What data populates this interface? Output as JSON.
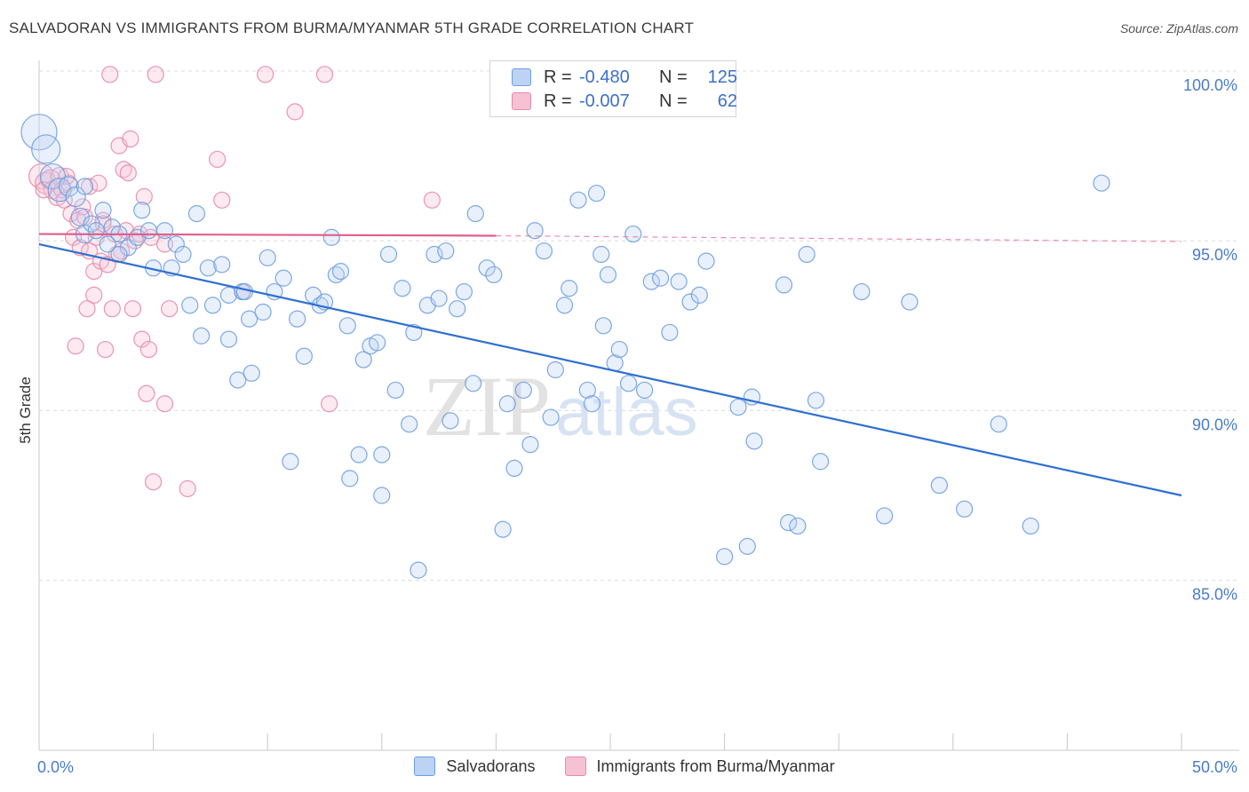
{
  "title": "SALVADORAN VS IMMIGRANTS FROM BURMA/MYANMAR 5TH GRADE CORRELATION CHART",
  "source": "Source: ZipAtlas.com",
  "watermark": {
    "part1": "ZIP",
    "part2": "atlas"
  },
  "colors": {
    "blue": "#6f9fe0",
    "blue_fill": "#bcd3f3",
    "blue_line": "#2e6fd2",
    "pink": "#e88aa8",
    "pink_fill": "#f6c2d3",
    "pink_line": "#e0608a",
    "tick_label": "#4a7cc9",
    "grid": "#dcdcdc"
  },
  "stats": {
    "rows": [
      {
        "r_label": "R =",
        "r_value": "-0.480",
        "n_label": "N =",
        "n_value": "125"
      },
      {
        "r_label": "R =",
        "r_value": "-0.007",
        "n_label": "N =",
        "n_value": "62"
      }
    ]
  },
  "chart_data": {
    "type": "scatter",
    "ylabel": "5th Grade",
    "xlim": [
      0,
      50
    ],
    "ylim": [
      80.0,
      100.8
    ],
    "x_tick_labels": [
      {
        "value": 0,
        "label": "0.0%"
      },
      {
        "value": 50,
        "label": "50.0%"
      }
    ],
    "y_tick_labels": [
      {
        "value": 100,
        "label": "100.0%"
      },
      {
        "value": 95,
        "label": "95.0%"
      },
      {
        "value": 90,
        "label": "90.0%"
      },
      {
        "value": 85,
        "label": "85.0%"
      }
    ],
    "grid": "horizontal dashed",
    "legend_position": "bottom",
    "series": [
      {
        "name": "Salvadorans",
        "trend": {
          "x0": 0,
          "y0": 94.9,
          "x1": 50,
          "y1": 87.5
        },
        "points": [
          [
            0.0,
            98.2,
            20
          ],
          [
            0.3,
            97.7,
            16
          ],
          [
            0.6,
            96.9,
            14
          ],
          [
            0.9,
            96.5,
            13
          ],
          [
            1.3,
            96.6,
            11
          ],
          [
            1.6,
            96.3,
            11
          ],
          [
            1.8,
            95.7,
            10
          ],
          [
            2.0,
            95.2,
            10
          ],
          [
            2.3,
            95.5,
            9
          ],
          [
            2.8,
            95.9,
            9
          ],
          [
            3.2,
            95.4,
            9
          ],
          [
            2.5,
            95.3,
            9
          ],
          [
            3.5,
            95.2,
            9
          ],
          [
            3.9,
            94.8,
            9
          ],
          [
            3.0,
            94.9,
            9
          ],
          [
            4.3,
            95.1,
            9
          ],
          [
            4.5,
            95.9,
            9
          ],
          [
            4.8,
            95.3,
            9
          ],
          [
            5.0,
            94.2,
            9
          ],
          [
            5.5,
            95.3,
            9
          ],
          [
            5.8,
            94.2,
            9
          ],
          [
            6.0,
            94.9,
            9
          ],
          [
            6.3,
            94.6,
            9
          ],
          [
            6.6,
            93.1,
            9
          ],
          [
            6.9,
            95.8,
            9
          ],
          [
            7.1,
            92.2,
            9
          ],
          [
            7.4,
            94.2,
            9
          ],
          [
            7.6,
            93.1,
            9
          ],
          [
            8.0,
            94.3,
            9
          ],
          [
            8.3,
            93.4,
            9
          ],
          [
            8.7,
            90.9,
            9
          ],
          [
            8.9,
            93.5,
            9
          ],
          [
            9.2,
            92.7,
            9
          ],
          [
            9.3,
            91.1,
            9
          ],
          [
            9.8,
            92.9,
            9
          ],
          [
            10.0,
            94.5,
            9
          ],
          [
            10.3,
            93.5,
            9
          ],
          [
            10.7,
            93.9,
            9
          ],
          [
            11.0,
            88.5,
            9
          ],
          [
            11.3,
            92.7,
            9
          ],
          [
            11.6,
            91.6,
            9
          ],
          [
            12.0,
            93.4,
            9
          ],
          [
            12.3,
            93.1,
            9
          ],
          [
            12.8,
            95.1,
            9
          ],
          [
            13.0,
            94.0,
            9
          ],
          [
            13.2,
            94.1,
            9
          ],
          [
            13.5,
            92.5,
            9
          ],
          [
            13.6,
            88.0,
            9
          ],
          [
            14.0,
            88.7,
            9
          ],
          [
            14.2,
            91.5,
            9
          ],
          [
            14.5,
            91.9,
            9
          ],
          [
            14.8,
            92.0,
            9
          ],
          [
            15.0,
            87.5,
            9
          ],
          [
            15.3,
            94.6,
            9
          ],
          [
            15.6,
            90.6,
            9
          ],
          [
            15.9,
            93.6,
            9
          ],
          [
            16.2,
            89.6,
            9
          ],
          [
            16.4,
            92.3,
            9
          ],
          [
            16.6,
            85.3,
            9
          ],
          [
            17.0,
            93.1,
            9
          ],
          [
            17.3,
            94.6,
            9
          ],
          [
            17.5,
            93.3,
            9
          ],
          [
            17.8,
            94.7,
            9
          ],
          [
            18.0,
            89.7,
            9
          ],
          [
            18.3,
            93.0,
            9
          ],
          [
            18.6,
            93.5,
            9
          ],
          [
            19.0,
            90.8,
            9
          ],
          [
            19.1,
            95.8,
            9
          ],
          [
            19.6,
            94.2,
            9
          ],
          [
            19.9,
            94.0,
            9
          ],
          [
            20.3,
            86.5,
            9
          ],
          [
            20.5,
            90.2,
            9
          ],
          [
            20.8,
            88.3,
            9
          ],
          [
            21.2,
            90.6,
            9
          ],
          [
            21.5,
            89.0,
            9
          ],
          [
            21.7,
            95.3,
            9
          ],
          [
            22.1,
            94.7,
            9
          ],
          [
            22.6,
            91.2,
            9
          ],
          [
            23.0,
            93.1,
            9
          ],
          [
            23.2,
            93.6,
            9
          ],
          [
            23.6,
            96.2,
            9
          ],
          [
            24.0,
            90.6,
            9
          ],
          [
            24.2,
            90.2,
            9
          ],
          [
            24.4,
            96.4,
            9
          ],
          [
            24.7,
            92.5,
            9
          ],
          [
            24.9,
            94.0,
            9
          ],
          [
            25.2,
            91.4,
            9
          ],
          [
            25.4,
            91.8,
            9
          ],
          [
            25.8,
            90.8,
            9
          ],
          [
            26.0,
            95.2,
            9
          ],
          [
            26.5,
            90.6,
            9
          ],
          [
            26.8,
            93.8,
            9
          ],
          [
            27.2,
            93.9,
            9
          ],
          [
            27.6,
            92.3,
            9
          ],
          [
            28.0,
            93.8,
            9
          ],
          [
            28.5,
            93.2,
            9
          ],
          [
            28.9,
            93.4,
            9
          ],
          [
            29.2,
            94.4,
            9
          ],
          [
            30.0,
            85.7,
            9
          ],
          [
            30.6,
            90.1,
            9
          ],
          [
            31.0,
            86.0,
            9
          ],
          [
            31.2,
            90.4,
            9
          ],
          [
            31.3,
            89.1,
            9
          ],
          [
            32.6,
            93.7,
            9
          ],
          [
            32.8,
            86.7,
            9
          ],
          [
            33.2,
            86.6,
            9
          ],
          [
            33.6,
            94.6,
            9
          ],
          [
            34.0,
            90.3,
            9
          ],
          [
            34.2,
            88.5,
            9
          ],
          [
            36.0,
            93.5,
            9
          ],
          [
            37.0,
            86.9,
            9
          ],
          [
            38.1,
            93.2,
            9
          ],
          [
            39.4,
            87.8,
            9
          ],
          [
            40.5,
            87.1,
            9
          ],
          [
            42.0,
            89.6,
            9
          ],
          [
            43.4,
            86.6,
            9
          ],
          [
            46.5,
            96.7,
            9
          ],
          [
            12.5,
            93.2,
            9
          ],
          [
            9.0,
            93.5,
            9
          ],
          [
            3.5,
            94.6,
            9
          ],
          [
            2.0,
            96.6,
            9
          ],
          [
            8.3,
            92.1,
            9
          ],
          [
            22.4,
            89.8,
            9
          ],
          [
            15.0,
            88.7,
            9
          ],
          [
            24.6,
            94.6,
            9
          ]
        ]
      },
      {
        "name": "Immigrants from Burma/Myanmar",
        "trend": {
          "x0": 0,
          "y0": 95.2,
          "x1": 20,
          "y1": 95.15,
          "dash_to_x": 50,
          "dash_to_y": 94.98
        },
        "points": [
          [
            0.1,
            96.9,
            14
          ],
          [
            0.3,
            96.7,
            12
          ],
          [
            0.5,
            96.8,
            11
          ],
          [
            0.6,
            96.5,
            10
          ],
          [
            0.8,
            96.3,
            10
          ],
          [
            0.9,
            96.9,
            10
          ],
          [
            1.0,
            96.5,
            9
          ],
          [
            1.1,
            96.2,
            9
          ],
          [
            1.3,
            96.7,
            9
          ],
          [
            1.4,
            95.8,
            9
          ],
          [
            1.5,
            95.1,
            9
          ],
          [
            1.7,
            95.6,
            9
          ],
          [
            1.8,
            94.8,
            9
          ],
          [
            1.9,
            96.0,
            9
          ],
          [
            2.0,
            95.7,
            9
          ],
          [
            2.1,
            93.0,
            9
          ],
          [
            2.2,
            94.7,
            9
          ],
          [
            2.2,
            96.6,
            9
          ],
          [
            2.4,
            93.4,
            9
          ],
          [
            2.4,
            94.1,
            9
          ],
          [
            2.5,
            95.1,
            9
          ],
          [
            2.6,
            96.7,
            9
          ],
          [
            2.7,
            94.4,
            9
          ],
          [
            2.8,
            95.6,
            9
          ],
          [
            2.9,
            91.8,
            9
          ],
          [
            3.0,
            94.3,
            9
          ],
          [
            3.1,
            99.9,
            9
          ],
          [
            3.2,
            93.0,
            9
          ],
          [
            3.3,
            95.2,
            9
          ],
          [
            3.5,
            97.8,
            9
          ],
          [
            3.6,
            94.7,
            9
          ],
          [
            3.7,
            97.1,
            9
          ],
          [
            3.8,
            95.3,
            9
          ],
          [
            3.9,
            97.0,
            9
          ],
          [
            4.0,
            98.0,
            9
          ],
          [
            4.1,
            93.0,
            9
          ],
          [
            4.2,
            95.0,
            9
          ],
          [
            4.4,
            95.2,
            9
          ],
          [
            4.5,
            92.1,
            9
          ],
          [
            4.6,
            96.3,
            9
          ],
          [
            4.7,
            90.5,
            9
          ],
          [
            4.8,
            91.8,
            9
          ],
          [
            4.9,
            95.1,
            9
          ],
          [
            5.0,
            87.9,
            9
          ],
          [
            5.1,
            99.9,
            9
          ],
          [
            5.5,
            94.9,
            9
          ],
          [
            5.5,
            90.2,
            9
          ],
          [
            5.7,
            93.0,
            9
          ],
          [
            6.5,
            87.7,
            9
          ],
          [
            7.8,
            97.4,
            9
          ],
          [
            8.0,
            96.2,
            9
          ],
          [
            8.9,
            93.5,
            9
          ],
          [
            9.9,
            99.9,
            9
          ],
          [
            11.2,
            98.8,
            9
          ],
          [
            12.5,
            99.9,
            9
          ],
          [
            12.7,
            90.2,
            9
          ],
          [
            17.2,
            96.2,
            9
          ],
          [
            0.2,
            96.5,
            9
          ],
          [
            1.2,
            96.9,
            9
          ],
          [
            1.6,
            91.9,
            9
          ],
          [
            2.8,
            95.5,
            9
          ],
          [
            3.4,
            94.6,
            9
          ]
        ]
      }
    ]
  }
}
